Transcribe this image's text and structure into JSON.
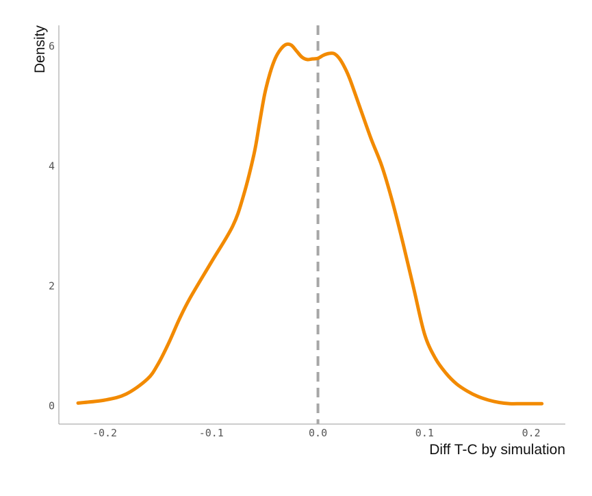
{
  "chart_data": {
    "type": "line",
    "title": "",
    "xlabel": "Diff T-C by simulation",
    "ylabel": "Density",
    "xlim": [
      -0.243,
      0.232
    ],
    "ylim": [
      -0.3,
      6.35
    ],
    "x_ticks": [
      -0.2,
      -0.1,
      0.0,
      0.1,
      0.2
    ],
    "x_tick_labels": [
      "-0.2",
      "-0.1",
      "0.0",
      "0.1",
      "0.2"
    ],
    "y_ticks": [
      0,
      2,
      4,
      6
    ],
    "y_tick_labels": [
      "0",
      "2",
      "4",
      "6"
    ],
    "grid": false,
    "reference_line": {
      "x": 0.0,
      "style": "dashed",
      "color": "#a6a6a6"
    },
    "series": [
      {
        "color": "#f28a00",
        "x": [
          -0.225,
          -0.2,
          -0.18,
          -0.16,
          -0.15,
          -0.14,
          -0.13,
          -0.12,
          -0.1,
          -0.08,
          -0.07,
          -0.06,
          -0.055,
          -0.05,
          -0.045,
          -0.04,
          -0.035,
          -0.03,
          -0.025,
          -0.02,
          -0.015,
          -0.01,
          -0.005,
          0.0,
          0.005,
          0.01,
          0.015,
          0.02,
          0.025,
          0.03,
          0.04,
          0.05,
          0.06,
          0.07,
          0.08,
          0.09,
          0.1,
          0.11,
          0.12,
          0.13,
          0.14,
          0.15,
          0.16,
          0.17,
          0.18,
          0.19,
          0.2,
          0.21
        ],
        "y": [
          0.05,
          0.1,
          0.2,
          0.45,
          0.7,
          1.05,
          1.45,
          1.8,
          2.4,
          3.0,
          3.5,
          4.2,
          4.7,
          5.2,
          5.55,
          5.8,
          5.95,
          6.03,
          6.02,
          5.92,
          5.82,
          5.78,
          5.79,
          5.8,
          5.85,
          5.88,
          5.88,
          5.8,
          5.65,
          5.45,
          4.95,
          4.45,
          4.0,
          3.4,
          2.7,
          1.95,
          1.2,
          0.8,
          0.55,
          0.37,
          0.25,
          0.16,
          0.1,
          0.06,
          0.04,
          0.04,
          0.04,
          0.04
        ]
      }
    ]
  }
}
